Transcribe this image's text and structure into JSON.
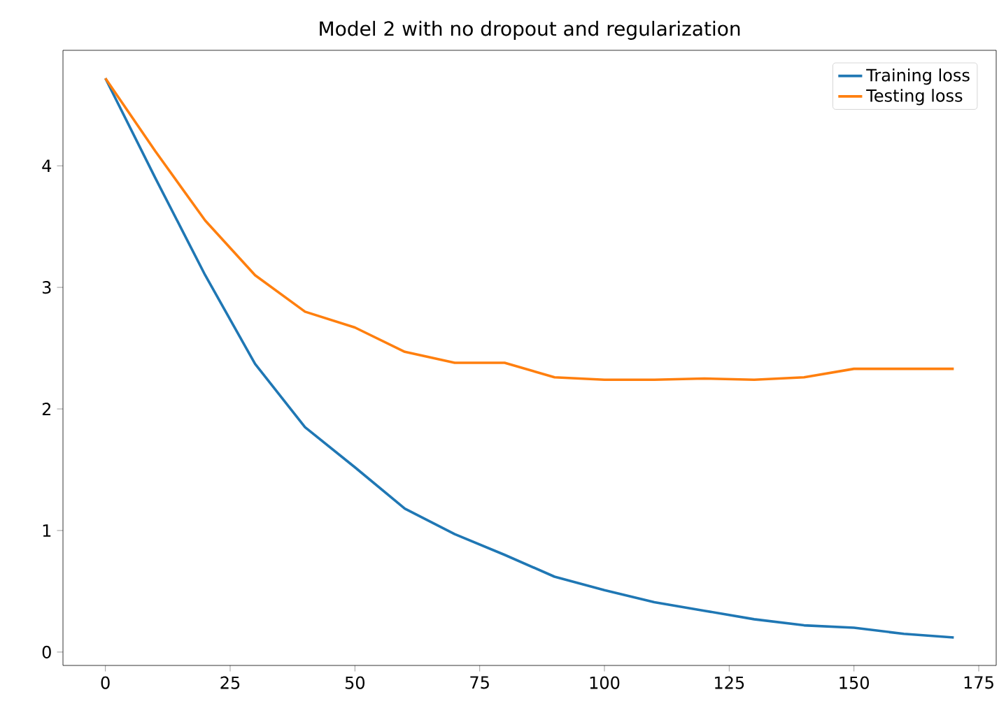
{
  "chart_data": {
    "type": "line",
    "title": "Model 2 with no dropout and regularization",
    "x": [
      0,
      10,
      20,
      30,
      40,
      50,
      60,
      70,
      80,
      90,
      100,
      110,
      120,
      130,
      140,
      150,
      160,
      170
    ],
    "series": [
      {
        "name": "Training loss",
        "color": "#1f77b4",
        "values": [
          4.72,
          3.9,
          3.1,
          2.37,
          1.85,
          1.52,
          1.18,
          0.97,
          0.8,
          0.62,
          0.51,
          0.41,
          0.34,
          0.27,
          0.22,
          0.2,
          0.15,
          0.12
        ]
      },
      {
        "name": "Testing loss",
        "color": "#ff7f0e",
        "values": [
          4.72,
          4.12,
          3.55,
          3.1,
          2.8,
          2.67,
          2.47,
          2.38,
          2.38,
          2.26,
          2.24,
          2.24,
          2.25,
          2.24,
          2.26,
          2.33,
          2.33,
          2.33
        ]
      }
    ],
    "xlim": [
      -8.5,
      178.5
    ],
    "ylim": [
      -0.11,
      4.95
    ],
    "xticks": [
      0,
      25,
      50,
      75,
      100,
      125,
      150,
      175
    ],
    "yticks": [
      0,
      1,
      2,
      3,
      4
    ],
    "legend": "top right",
    "grid": false,
    "marker": "none",
    "line_style": "solid"
  }
}
